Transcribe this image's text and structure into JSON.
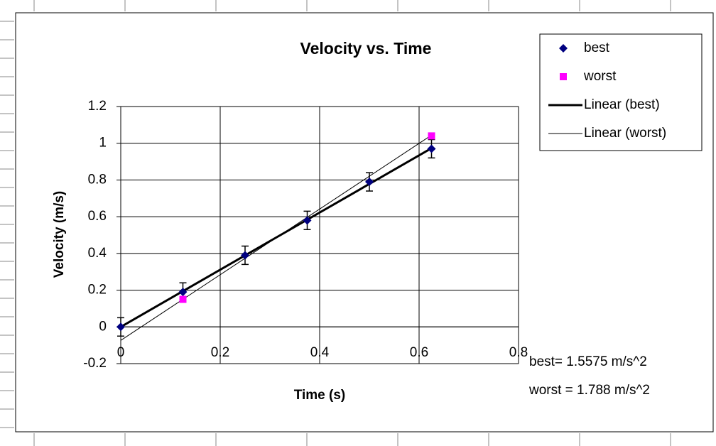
{
  "chart_data": {
    "type": "scatter",
    "title": "Velocity vs. Time",
    "x_label": "Time (s)",
    "y_label": "Velocity (m/s)",
    "xlim": [
      0,
      0.8
    ],
    "ylim": [
      -0.2,
      1.2
    ],
    "xticks": [
      0,
      0.2,
      0.4,
      0.6,
      0.8
    ],
    "yticks": [
      -0.2,
      0,
      0.2,
      0.4,
      0.6,
      0.8,
      1,
      1.2
    ],
    "grid": true,
    "legend": "right",
    "series": [
      {
        "name": "best",
        "color": "#000080",
        "marker": "diamond",
        "x": [
          0,
          0.125,
          0.25,
          0.375,
          0.5,
          0.625
        ],
        "values": [
          0,
          0.19,
          0.39,
          0.58,
          0.79,
          0.97
        ],
        "errors": [
          0.05,
          0.05,
          0.05,
          0.05,
          0.05,
          0.05
        ]
      },
      {
        "name": "worst",
        "color": "#ff00ff",
        "marker": "square",
        "x": [
          0.125,
          0.625
        ],
        "values": [
          0.15,
          1.04
        ]
      },
      {
        "name": "Linear (best)",
        "color": "#000000",
        "marker": "line",
        "width": 3,
        "x": [
          0,
          0.625
        ],
        "values": [
          0,
          0.973
        ]
      },
      {
        "name": "Linear (worst)",
        "color": "#000000",
        "marker": "line",
        "width": 1,
        "x": [
          0,
          0.625
        ],
        "values": [
          -0.0735,
          1.044
        ]
      }
    ],
    "annotations": [
      "best= 1.5575 m/s^2",
      "worst = 1.788 m/s^2"
    ]
  }
}
